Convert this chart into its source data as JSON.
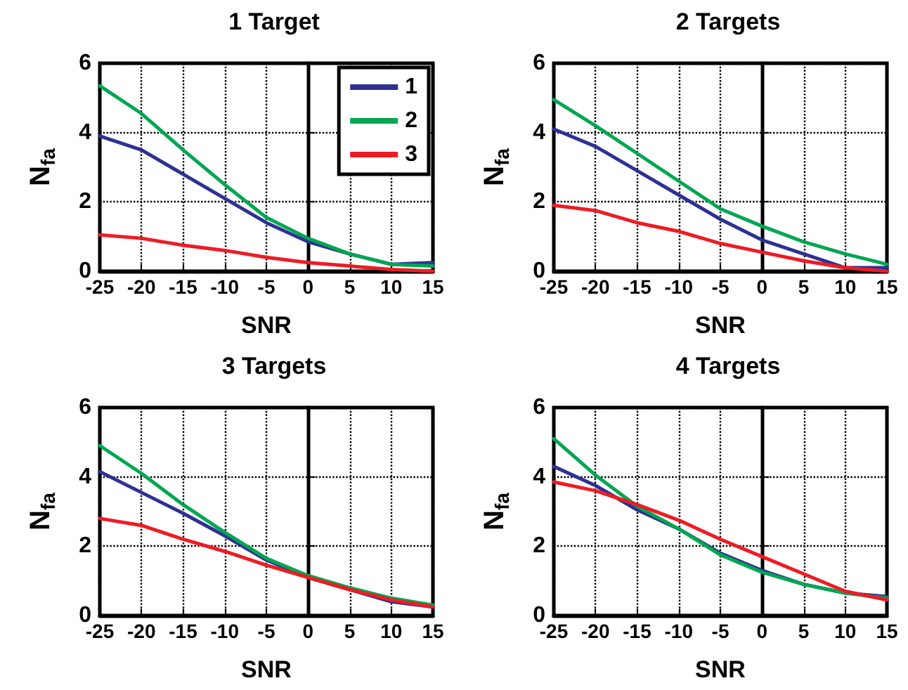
{
  "chart_data": [
    {
      "type": "line",
      "title": "1 Target",
      "xlabel": "SNR",
      "ylabel": "N$_{fa}$",
      "x": [
        -25,
        -20,
        -15,
        -10,
        -5,
        0,
        5,
        10,
        15
      ],
      "xlim": [
        -25,
        15
      ],
      "xticks": [
        -25,
        -20,
        -15,
        -10,
        -5,
        0,
        5,
        10,
        15
      ],
      "ylim": [
        0,
        6
      ],
      "yticks": [
        0,
        2,
        4,
        6
      ],
      "grid": true,
      "legend": "top right",
      "line_style": "solid",
      "marker": "none",
      "series": [
        {
          "name": "1",
          "color": "#2e3192",
          "values": [
            3.9,
            3.5,
            2.8,
            2.1,
            1.4,
            0.85,
            0.5,
            0.2,
            0.25
          ]
        },
        {
          "name": "2",
          "color": "#00a651",
          "values": [
            5.35,
            4.55,
            3.5,
            2.5,
            1.55,
            0.95,
            0.5,
            0.2,
            0.15
          ]
        },
        {
          "name": "3",
          "color": "#ed1c24",
          "values": [
            1.05,
            0.95,
            0.75,
            0.6,
            0.4,
            0.25,
            0.15,
            0.05,
            0.0
          ]
        }
      ]
    },
    {
      "type": "line",
      "title": "2 Targets",
      "xlabel": "SNR",
      "ylabel": "N$_{fa}$",
      "x": [
        -25,
        -20,
        -15,
        -10,
        -5,
        0,
        5,
        10,
        15
      ],
      "xlim": [
        -25,
        15
      ],
      "xticks": [
        -25,
        -20,
        -15,
        -10,
        -5,
        0,
        5,
        10,
        15
      ],
      "ylim": [
        0,
        6
      ],
      "yticks": [
        0,
        2,
        4,
        6
      ],
      "grid": true,
      "line_style": "solid",
      "marker": "none",
      "series": [
        {
          "color": "#2e3192",
          "values": [
            4.1,
            3.6,
            2.9,
            2.2,
            1.5,
            0.9,
            0.5,
            0.1,
            0.1
          ]
        },
        {
          "color": "#00a651",
          "values": [
            4.95,
            4.2,
            3.4,
            2.6,
            1.8,
            1.3,
            0.85,
            0.5,
            0.2
          ]
        },
        {
          "color": "#ed1c24",
          "values": [
            1.9,
            1.75,
            1.4,
            1.15,
            0.8,
            0.55,
            0.3,
            0.1,
            0.0
          ]
        }
      ]
    },
    {
      "type": "line",
      "title": "3 Targets",
      "xlabel": "SNR",
      "ylabel": "N$_{fa}$",
      "x": [
        -25,
        -20,
        -15,
        -10,
        -5,
        0,
        5,
        10,
        15
      ],
      "xlim": [
        -25,
        15
      ],
      "xticks": [
        -25,
        -20,
        -15,
        -10,
        -5,
        0,
        5,
        10,
        15
      ],
      "ylim": [
        0,
        6
      ],
      "yticks": [
        0,
        2,
        4,
        6
      ],
      "grid": true,
      "line_style": "solid",
      "marker": "none",
      "series": [
        {
          "color": "#2e3192",
          "values": [
            4.15,
            3.55,
            2.95,
            2.3,
            1.6,
            1.1,
            0.75,
            0.4,
            0.25
          ]
        },
        {
          "color": "#00a651",
          "values": [
            4.9,
            4.1,
            3.2,
            2.4,
            1.65,
            1.15,
            0.8,
            0.5,
            0.3
          ]
        },
        {
          "color": "#ed1c24",
          "values": [
            2.8,
            2.6,
            2.2,
            1.85,
            1.45,
            1.1,
            0.75,
            0.45,
            0.25
          ]
        }
      ]
    },
    {
      "type": "line",
      "title": "4 Targets",
      "xlabel": "SNR",
      "ylabel": "N$_{fa}$",
      "x": [
        -25,
        -20,
        -15,
        -10,
        -5,
        0,
        5,
        10,
        15
      ],
      "xlim": [
        -25,
        15
      ],
      "xticks": [
        -25,
        -20,
        -15,
        -10,
        -5,
        0,
        5,
        10,
        15
      ],
      "ylim": [
        0,
        6
      ],
      "yticks": [
        0,
        2,
        4,
        6
      ],
      "grid": true,
      "line_style": "solid",
      "marker": "none",
      "series": [
        {
          "color": "#2e3192",
          "values": [
            4.3,
            3.75,
            3.05,
            2.5,
            1.8,
            1.3,
            0.9,
            0.65,
            0.55
          ]
        },
        {
          "color": "#00a651",
          "values": [
            5.1,
            4.05,
            3.15,
            2.5,
            1.75,
            1.25,
            0.9,
            0.65,
            0.5
          ]
        },
        {
          "color": "#ed1c24",
          "values": [
            3.85,
            3.6,
            3.2,
            2.75,
            2.2,
            1.7,
            1.2,
            0.7,
            0.45
          ]
        }
      ]
    }
  ]
}
